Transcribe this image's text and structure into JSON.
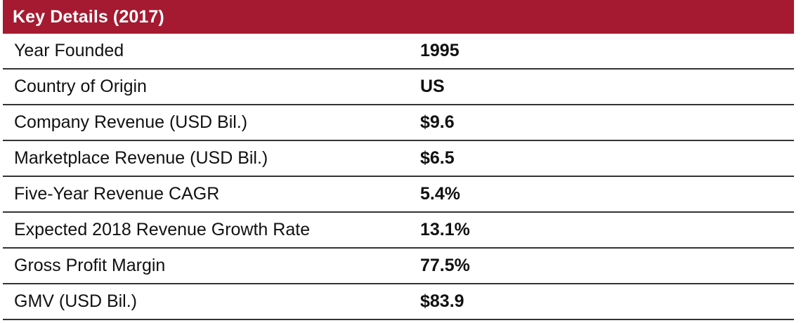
{
  "table": {
    "title": "Key Details (2017)",
    "rows": [
      {
        "label": "Year Founded",
        "value": "1995"
      },
      {
        "label": "Country of Origin",
        "value": "US"
      },
      {
        "label": "Company Revenue (USD Bil.)",
        "value": "$9.6"
      },
      {
        "label": "Marketplace Revenue (USD Bil.)",
        "value": "$6.5"
      },
      {
        "label": "Five-Year Revenue CAGR",
        "value": "5.4%"
      },
      {
        "label": "Expected 2018 Revenue Growth Rate",
        "value": "13.1%"
      },
      {
        "label": "Gross Profit Margin",
        "value": "77.5%"
      },
      {
        "label": "GMV (USD Bil.)",
        "value": "$83.9"
      }
    ]
  },
  "colors": {
    "header_background": "#a51a30",
    "header_text": "#ffffff",
    "divider": "#333333"
  }
}
